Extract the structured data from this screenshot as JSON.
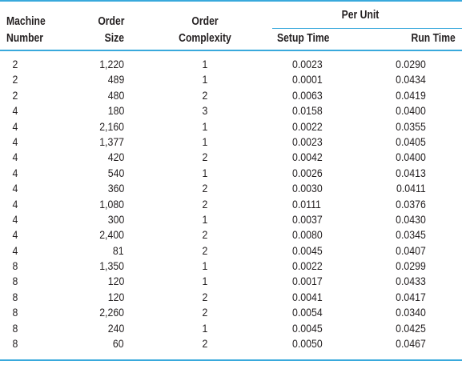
{
  "headers": {
    "machine_line1": "Machine",
    "machine_line2": "Number",
    "size_line1": "Order",
    "size_line2": "Size",
    "complexity_line1": "Order",
    "complexity_line2": "Complexity",
    "per_unit": "Per Unit",
    "setup_time": "Setup Time",
    "run_time": "Run Time"
  },
  "rows": [
    {
      "machine": "2",
      "size": "1,220",
      "complexity": "1",
      "setup": "0.0023",
      "run": "0.0290"
    },
    {
      "machine": "2",
      "size": "489",
      "complexity": "1",
      "setup": "0.0001",
      "run": "0.0434"
    },
    {
      "machine": "2",
      "size": "480",
      "complexity": "2",
      "setup": "0.0063",
      "run": "0.0419"
    },
    {
      "machine": "4",
      "size": "180",
      "complexity": "3",
      "setup": "0.0158",
      "run": "0.0400"
    },
    {
      "machine": "4",
      "size": "2,160",
      "complexity": "1",
      "setup": "0.0022",
      "run": "0.0355"
    },
    {
      "machine": "4",
      "size": "1,377",
      "complexity": "1",
      "setup": "0.0023",
      "run": "0.0405"
    },
    {
      "machine": "4",
      "size": "420",
      "complexity": "2",
      "setup": "0.0042",
      "run": "0.0400"
    },
    {
      "machine": "4",
      "size": "540",
      "complexity": "1",
      "setup": "0.0026",
      "run": "0.0413"
    },
    {
      "machine": "4",
      "size": "360",
      "complexity": "2",
      "setup": "0.0030",
      "run": "0.0411"
    },
    {
      "machine": "4",
      "size": "1,080",
      "complexity": "2",
      "setup": "0.0111",
      "run": "0.0376"
    },
    {
      "machine": "4",
      "size": "300",
      "complexity": "1",
      "setup": "0.0037",
      "run": "0.0430"
    },
    {
      "machine": "4",
      "size": "2,400",
      "complexity": "2",
      "setup": "0.0080",
      "run": "0.0345"
    },
    {
      "machine": "4",
      "size": "81",
      "complexity": "2",
      "setup": "0.0045",
      "run": "0.0407"
    },
    {
      "machine": "8",
      "size": "1,350",
      "complexity": "1",
      "setup": "0.0022",
      "run": "0.0299"
    },
    {
      "machine": "8",
      "size": "120",
      "complexity": "1",
      "setup": "0.0017",
      "run": "0.0433"
    },
    {
      "machine": "8",
      "size": "120",
      "complexity": "2",
      "setup": "0.0041",
      "run": "0.0417"
    },
    {
      "machine": "8",
      "size": "2,260",
      "complexity": "2",
      "setup": "0.0054",
      "run": "0.0340"
    },
    {
      "machine": "8",
      "size": "240",
      "complexity": "1",
      "setup": "0.0045",
      "run": "0.0425"
    },
    {
      "machine": "8",
      "size": "60",
      "complexity": "2",
      "setup": "0.0050",
      "run": "0.0467"
    }
  ],
  "colors": {
    "rule": "#39a9dc",
    "text": "#231f20",
    "background": "#ffffff"
  }
}
